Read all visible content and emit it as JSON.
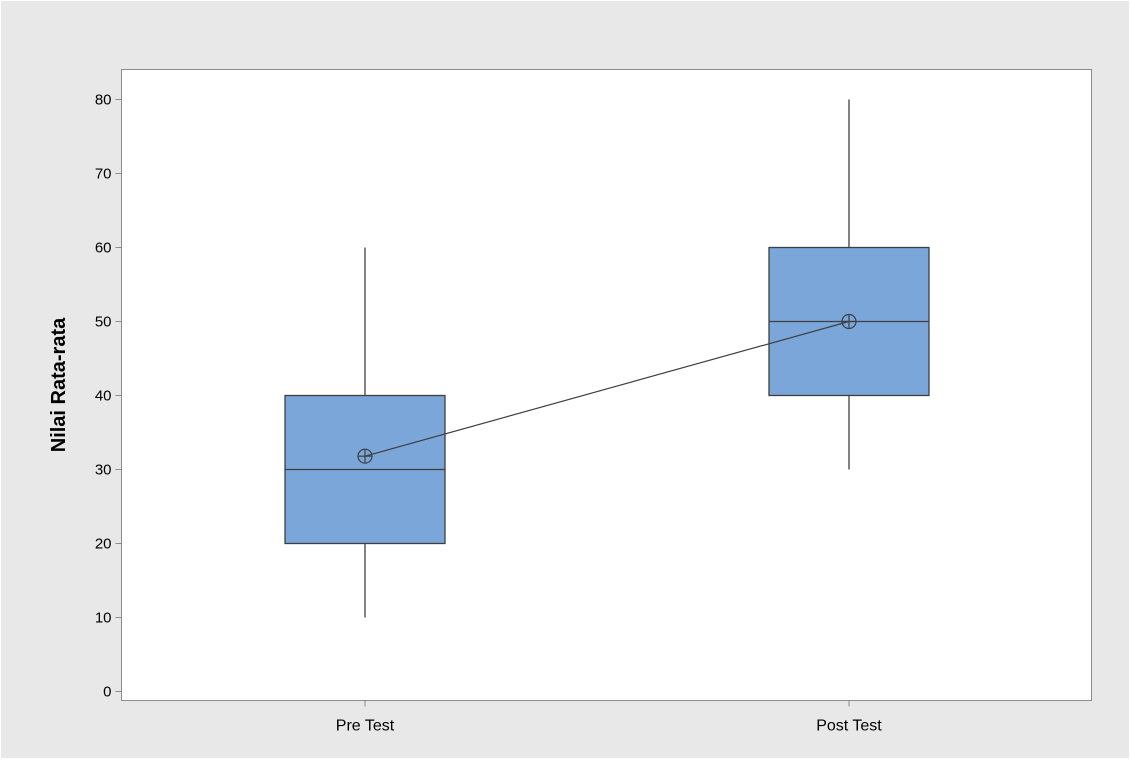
{
  "chart_data": {
    "type": "boxplot",
    "title": "",
    "xlabel": "",
    "ylabel": "Nilai Rata-rata",
    "ylim": [
      -1.5,
      84.5
    ],
    "yticks": [
      0,
      10,
      20,
      30,
      40,
      50,
      60,
      70,
      80
    ],
    "grid": false,
    "categories": [
      "Pre Test",
      "Post Test"
    ],
    "boxes": [
      {
        "category": "Pre Test",
        "min": 10,
        "q1": 20,
        "median": 30,
        "q3": 40,
        "max": 60,
        "mean": 31.8
      },
      {
        "category": "Post Test",
        "min": 30,
        "q1": 40,
        "median": 50,
        "q3": 60,
        "max": 80,
        "mean": 50
      }
    ],
    "mean_connect_line": true,
    "colors": {
      "box_fill": "#7aa6d9",
      "box_stroke": "#3f3f3f",
      "whisker": "#3f3f3f",
      "mean_line": "#3f3f3f",
      "panel_background": "#e8e8e8",
      "plot_background": "#ffffff",
      "frame": "#8c8c8c"
    }
  }
}
